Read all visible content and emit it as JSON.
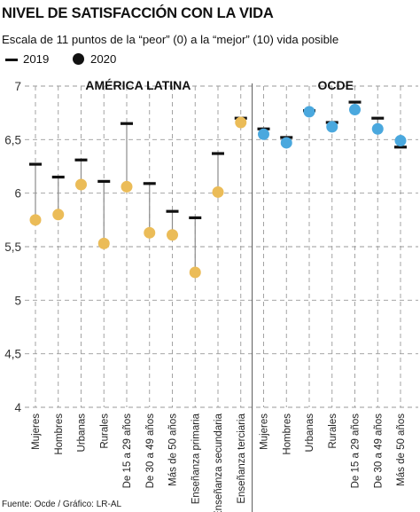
{
  "title": "NIVEL DE SATISFACCIÓN CON LA VIDA",
  "subtitle": "Escala de 11 puntos de la “peor” (0) a la “mejor” (10) vida posible",
  "legend": {
    "item_2019": "2019",
    "item_2020": "2020"
  },
  "source": "Fuente: Ocde / Gráfico: LR-AL",
  "colors": {
    "america_latina_2020": "#EBBC58",
    "ocde_2020": "#4AA8DE",
    "marker_2019": "#111111",
    "grid": "#9a9a9a"
  },
  "chart_data": {
    "type": "scatter",
    "ylim": [
      4,
      7
    ],
    "yticks": [
      "4",
      "4,5",
      "5",
      "5,5",
      "6",
      "6,5",
      "7"
    ],
    "grid": true,
    "legend_position": "top-left",
    "groups": [
      {
        "name": "AMÉRICA LATINA",
        "categories": [
          "Mujeres",
          "Hombres",
          "Urbanas",
          "Rurales",
          "De 15 a 29 años",
          "De 30 a 49 años",
          "Más de 50 años",
          "Enseñanza primaria",
          "Enseñanza secundaria",
          "Enseñanza terciaria"
        ],
        "values_2019": [
          6.27,
          6.15,
          6.31,
          6.11,
          6.65,
          6.09,
          5.83,
          5.77,
          6.37,
          6.7
        ],
        "values_2020": [
          5.75,
          5.8,
          6.08,
          5.53,
          6.06,
          5.63,
          5.61,
          5.26,
          6.01,
          6.66
        ]
      },
      {
        "name": "OCDE",
        "categories": [
          "Mujeres",
          "Hombres",
          "Urbanas",
          "Rurales",
          "De 15 a 29 años",
          "De 30 a 49 años",
          "Más de 50 años"
        ],
        "values_2019": [
          6.6,
          6.52,
          6.77,
          6.66,
          6.85,
          6.7,
          6.43
        ],
        "values_2020": [
          6.55,
          6.47,
          6.76,
          6.62,
          6.78,
          6.6,
          6.49
        ]
      }
    ]
  }
}
